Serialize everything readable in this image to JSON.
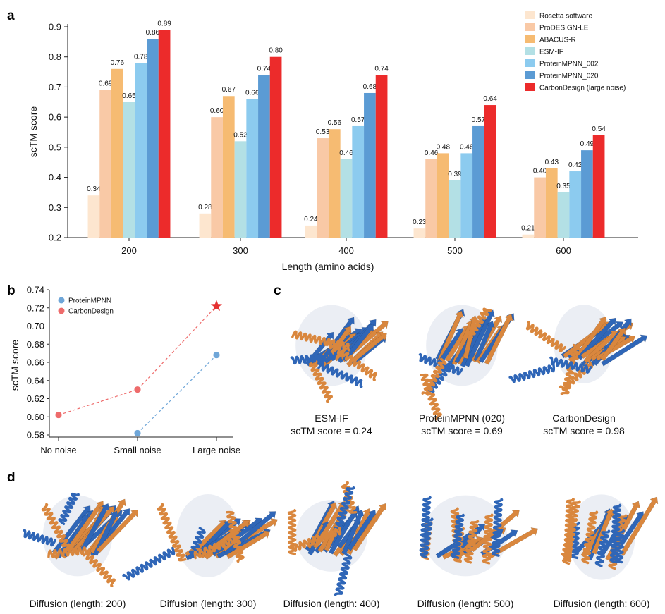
{
  "panel_labels": {
    "a": "a",
    "b": "b",
    "c": "c",
    "d": "d"
  },
  "chart_data": [
    {
      "type": "bar",
      "panel": "a",
      "categories": [
        "200",
        "300",
        "400",
        "500",
        "600"
      ],
      "xlabel": "Length (amino acids)",
      "ylabel": "scTM score",
      "ylim": [
        0.2,
        0.9
      ],
      "yticks": [
        "0.2",
        "0.3",
        "0.4",
        "0.5",
        "0.6",
        "0.7",
        "0.8",
        "0.9"
      ],
      "legend_position": "top-right",
      "series": [
        {
          "name": "Rosetta software",
          "color": "#fde6cf",
          "values": [
            0.34,
            0.28,
            0.24,
            0.23,
            0.21
          ],
          "labels": [
            "0.34",
            "0.28",
            "0.24",
            "0.23",
            "0.21"
          ]
        },
        {
          "name": "ProDESIGN-LE",
          "color": "#f9c9a6",
          "values": [
            0.69,
            0.6,
            0.53,
            0.46,
            0.4
          ],
          "labels": [
            "0.69",
            "0.60",
            "0.53",
            "0.46",
            "0.40"
          ]
        },
        {
          "name": "ABACUS-R",
          "color": "#f6bb72",
          "values": [
            0.76,
            0.67,
            0.56,
            0.48,
            0.43
          ],
          "labels": [
            "0.76",
            "0.67",
            "0.56",
            "0.48",
            "0.43"
          ]
        },
        {
          "name": "ESM-IF",
          "color": "#b3e0e5",
          "values": [
            0.65,
            0.52,
            0.46,
            0.39,
            0.35
          ],
          "labels": [
            "0.65",
            "0.52",
            "0.46",
            "0.39",
            "0.35"
          ]
        },
        {
          "name": "ProteinMPNN_002",
          "color": "#8ccbef",
          "values": [
            0.78,
            0.66,
            0.57,
            0.48,
            0.42
          ],
          "labels": [
            "0.78",
            "0.66",
            "0.57",
            "0.48",
            "0.42"
          ]
        },
        {
          "name": "ProteinMPNN_020",
          "color": "#5b9bd4",
          "values": [
            0.86,
            0.74,
            0.68,
            0.57,
            0.49
          ],
          "labels": [
            "0.86",
            "0.74",
            "0.68",
            "0.57",
            "0.49"
          ]
        },
        {
          "name": "CarbonDesign (large noise)",
          "color": "#ec2b2b",
          "values": [
            0.89,
            0.8,
            0.74,
            0.64,
            0.54
          ],
          "labels": [
            "0.89",
            "0.80",
            "0.74",
            "0.64",
            "0.54"
          ]
        }
      ]
    },
    {
      "type": "scatter",
      "panel": "b",
      "categories": [
        "No noise",
        "Small noise",
        "Large noise"
      ],
      "ylabel": "scTM score",
      "ylim": [
        0.58,
        0.74
      ],
      "yticks": [
        "0.58",
        "0.60",
        "0.62",
        "0.64",
        "0.66",
        "0.68",
        "0.70",
        "0.72",
        "0.74"
      ],
      "legend_position": "top-left",
      "series": [
        {
          "name": "ProteinMPNN",
          "color": "#6fa6d8",
          "marker": "circle",
          "points": [
            [
              1,
              0.582
            ],
            [
              2,
              0.668
            ]
          ]
        },
        {
          "name": "CarbonDesign",
          "color": "#ee6b6b",
          "marker": "circle",
          "highlight": "star",
          "points": [
            [
              0,
              0.602
            ],
            [
              1,
              0.63
            ],
            [
              2,
              0.722
            ]
          ]
        }
      ]
    }
  ],
  "panel_c": {
    "structures": [
      {
        "name": "ESM-IF",
        "score": "scTM score = 0.24"
      },
      {
        "name": "ProteinMPNN (020)",
        "score": "scTM score = 0.69"
      },
      {
        "name": "CarbonDesign",
        "score": "scTM score = 0.98"
      }
    ]
  },
  "panel_d": {
    "structures": [
      {
        "caption": "Diffusion (length: 200)"
      },
      {
        "caption": "Diffusion (length: 300)"
      },
      {
        "caption": "Diffusion (length: 400)"
      },
      {
        "caption": "Diffusion (length: 500)"
      },
      {
        "caption": "Diffusion (length: 600)"
      }
    ]
  },
  "colors": {
    "blue": "#2f66b7",
    "orange": "#d9873e",
    "grid": "#e6e6e6"
  }
}
